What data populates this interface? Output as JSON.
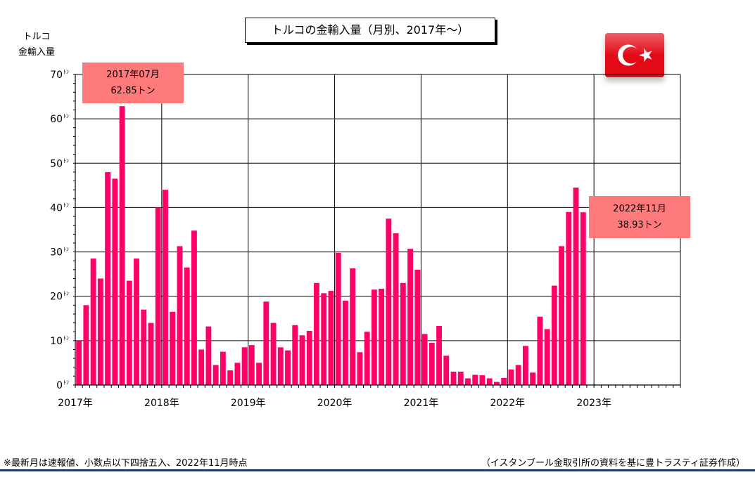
{
  "chart_data": {
    "type": "bar",
    "title": "トルコの金輸入量（月別、2017年～）",
    "ylabel_line1": "トルコ",
    "ylabel_line2": "金輸入量",
    "ylim": [
      0,
      70
    ],
    "yticks": [
      {
        "value": 0,
        "label": "0"
      },
      {
        "value": 10,
        "label": "10"
      },
      {
        "value": 20,
        "label": "20"
      },
      {
        "value": 30,
        "label": "30"
      },
      {
        "value": 40,
        "label": "40"
      },
      {
        "value": 50,
        "label": "50"
      },
      {
        "value": 60,
        "label": "60"
      },
      {
        "value": 70,
        "label": "70"
      }
    ],
    "ytick_unit": "ﾄﾝ",
    "xticks": [
      "2017年",
      "2018年",
      "2019年",
      "2020年",
      "2021年",
      "2022年",
      "2023年"
    ],
    "start": "2017-01",
    "months_total": 84,
    "grid": true,
    "bar_color": "#ff0066",
    "values": [
      10,
      18,
      28.5,
      24,
      48,
      46.5,
      62.85,
      23.5,
      28.5,
      17,
      14,
      40,
      44,
      16.5,
      31.3,
      26.5,
      34.8,
      8,
      13.2,
      4.5,
      7.5,
      3.3,
      5,
      8.5,
      9,
      5,
      18.8,
      14,
      8.5,
      7.8,
      13.5,
      11.2,
      12.2,
      23,
      20.7,
      21.2,
      29.8,
      19,
      26.3,
      7.4,
      12,
      21.5,
      21.7,
      37.5,
      34.2,
      23,
      30.7,
      26,
      11.5,
      9.5,
      13.3,
      6.6,
      3,
      3,
      1.5,
      2.3,
      2.2,
      1.5,
      0.7,
      1.6,
      3.5,
      4.5,
      8.8,
      2.8,
      15.4,
      12.6,
      22.4,
      31.3,
      39,
      44.5,
      38.93
    ],
    "annotations": [
      {
        "month_index": 6,
        "line1": "2017年07月",
        "line2": "62.85トン"
      },
      {
        "month_index": 70,
        "line1": "2022年11月",
        "line2": "38.93トン"
      }
    ]
  },
  "footer": {
    "note": "※最新月は速報値、小数点以下四捨五入、2022年11月時点",
    "source": "（イスタンブール金取引所の資料を基に豊トラスティ証券作成）"
  },
  "colors": {
    "bar": "#ff0066",
    "callout": "#ff7b7b",
    "flag": "#e30a17",
    "bottom_rule": "#1f3864"
  },
  "icons": {
    "flag": "turkey-flag-icon"
  }
}
